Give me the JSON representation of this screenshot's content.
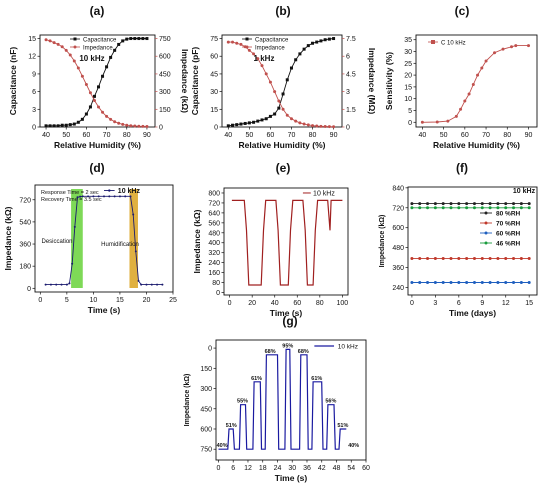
{
  "chart_data": [
    {
      "panel": "(a)",
      "type": "line",
      "xlabel": "Relative Humidity (%)",
      "ylabel": "Capacitance (nF)",
      "ylabel_right": "Impedance (kΩ)",
      "annotation": "10 kHz",
      "xlim": [
        37,
        94
      ],
      "ylim": [
        0,
        15.6
      ],
      "ylim_right": [
        0,
        780
      ],
      "x_ticks": [
        "40",
        "50",
        "60",
        "70",
        "80",
        "90"
      ],
      "y_ticks": [
        "0",
        "3",
        "6",
        "9",
        "12",
        "15"
      ],
      "y_ticks_right": [
        "0",
        "150",
        "300",
        "450",
        "600",
        "750"
      ],
      "x": [
        40,
        42,
        44,
        46,
        48,
        50,
        52,
        54,
        56,
        58,
        60,
        62,
        64,
        66,
        68,
        70,
        72,
        74,
        76,
        78,
        80,
        82,
        84,
        86,
        88,
        90
      ],
      "series": [
        {
          "name": "Capacitance",
          "axis": "left",
          "color": "#111111",
          "values": [
            0.2,
            0.2,
            0.2,
            0.2,
            0.3,
            0.3,
            0.4,
            0.5,
            0.8,
            1.3,
            2.2,
            3.4,
            5.2,
            6.8,
            8.6,
            10.2,
            11.8,
            13.0,
            14.0,
            14.6,
            14.9,
            15.0,
            15.0,
            15.0,
            15.0,
            15.0
          ]
        },
        {
          "name": "Impedance",
          "axis": "right",
          "color": "#c0504d",
          "values": [
            740,
            730,
            715,
            700,
            680,
            650,
            610,
            560,
            500,
            430,
            360,
            290,
            225,
            170,
            125,
            90,
            65,
            45,
            32,
            22,
            15,
            11,
            8,
            6,
            5,
            4
          ]
        }
      ]
    },
    {
      "panel": "(b)",
      "type": "line",
      "xlabel": "Relative Humidity (%)",
      "ylabel": "Capacitance (pF)",
      "ylabel_right": "Impedance (MΩ)",
      "annotation": "1 kHz",
      "xlim": [
        37,
        94
      ],
      "ylim": [
        0,
        78
      ],
      "ylim_right": [
        0,
        7.8
      ],
      "x_ticks": [
        "40",
        "50",
        "60",
        "70",
        "80",
        "90"
      ],
      "y_ticks": [
        "0",
        "15",
        "30",
        "45",
        "60",
        "75"
      ],
      "y_ticks_right": [
        "0",
        "1.5",
        "3",
        "4.5",
        "6",
        "7.5"
      ],
      "x": [
        40,
        42,
        44,
        46,
        48,
        50,
        52,
        54,
        56,
        58,
        60,
        62,
        64,
        66,
        68,
        70,
        72,
        74,
        76,
        78,
        80,
        82,
        84,
        86,
        88,
        90
      ],
      "series": [
        {
          "name": "Capacitance",
          "axis": "left",
          "color": "#111111",
          "values": [
            1,
            1.5,
            2,
            2.5,
            3,
            3.5,
            4,
            5,
            6,
            7,
            9,
            11,
            16,
            28,
            40,
            50,
            57,
            62,
            66,
            69,
            71,
            72,
            73,
            74,
            74.5,
            75
          ]
        },
        {
          "name": "Impedance",
          "axis": "right",
          "color": "#c0504d",
          "values": [
            7.2,
            7.2,
            7.1,
            7.0,
            6.8,
            6.5,
            6.2,
            5.8,
            5.2,
            4.5,
            3.8,
            3.0,
            2.2,
            1.5,
            1.0,
            0.7,
            0.5,
            0.35,
            0.25,
            0.18,
            0.12,
            0.08,
            0.05,
            0.04,
            0.03,
            0.02
          ]
        }
      ]
    },
    {
      "panel": "(c)",
      "type": "line",
      "xlabel": "Relative Humidity (%)",
      "ylabel": "Sensitivity (%)",
      "xlim": [
        37,
        94
      ],
      "ylim": [
        -2,
        37
      ],
      "x_ticks": [
        "40",
        "50",
        "60",
        "70",
        "80",
        "90"
      ],
      "y_ticks": [
        "0",
        "5",
        "10",
        "15",
        "20",
        "25",
        "30",
        "35"
      ],
      "x": [
        40,
        47,
        52,
        56,
        58,
        60,
        62,
        64,
        66,
        68,
        70,
        74,
        78,
        82,
        84,
        90
      ],
      "series": [
        {
          "name": "C 10 kHz",
          "color": "#c0504d",
          "values": [
            0,
            0.1,
            0.5,
            2.5,
            5.5,
            9,
            12,
            16,
            20,
            23,
            26,
            29.5,
            31,
            32,
            32.5,
            32.5
          ]
        }
      ]
    },
    {
      "panel": "(d)",
      "type": "line",
      "xlabel": "Time (s)",
      "ylabel": "Impedance (kΩ)",
      "xlim": [
        -1,
        25
      ],
      "ylim": [
        -30,
        840
      ],
      "x_ticks": [
        "0",
        "5",
        "10",
        "15",
        "20",
        "25"
      ],
      "y_ticks": [
        "0",
        "180",
        "360",
        "540",
        "720"
      ],
      "legend": "10 kHz",
      "annotations": [
        "Response Time = 2 sec",
        "Recovery Time = 3.5 sec",
        "Desiccation",
        "Humidification"
      ],
      "series": [
        {
          "name": "10 kHz",
          "color": "#1a1a6e",
          "x": [
            1,
            2,
            3,
            4,
            5,
            5.5,
            6,
            6.5,
            7,
            7.5,
            8,
            9,
            10,
            11,
            12,
            13,
            14,
            15,
            16,
            17,
            17.5,
            18,
            18.5,
            19,
            20,
            21,
            22,
            23
          ],
          "values": [
            30,
            30,
            30,
            30,
            30,
            40,
            200,
            500,
            740,
            745,
            748,
            748,
            748,
            748,
            748,
            748,
            748,
            748,
            748,
            748,
            600,
            300,
            60,
            30,
            30,
            30,
            30,
            30
          ]
        }
      ]
    },
    {
      "panel": "(e)",
      "type": "line",
      "xlabel": "Time (s)",
      "ylabel": "Impedance (kΩ)",
      "xlim": [
        -5,
        105
      ],
      "ylim": [
        -20,
        840
      ],
      "x_ticks": [
        "0",
        "20",
        "40",
        "60",
        "80",
        "100"
      ],
      "y_ticks": [
        "0",
        "80",
        "160",
        "240",
        "320",
        "400",
        "480",
        "560",
        "640",
        "720",
        "800"
      ],
      "legend": "10 kHz",
      "series": [
        {
          "name": "10 kHz",
          "color": "#a02020",
          "x": [
            2,
            13,
            15,
            17,
            28,
            30,
            32,
            41,
            43,
            45,
            52,
            54,
            56,
            65,
            67,
            69,
            74,
            76,
            78,
            87,
            89,
            90,
            100
          ],
          "values": [
            740,
            740,
            500,
            60,
            60,
            500,
            740,
            740,
            500,
            60,
            60,
            500,
            740,
            740,
            500,
            60,
            60,
            500,
            740,
            740,
            500,
            740,
            740
          ]
        }
      ]
    },
    {
      "panel": "(f)",
      "type": "line",
      "xlabel": "Time (days)",
      "ylabel": "Impedance (kΩ)",
      "annotation": "10 kHz",
      "xlim": [
        -0.5,
        16
      ],
      "ylim": [
        195,
        845
      ],
      "x_ticks": [
        "0",
        "3",
        "6",
        "9",
        "12",
        "15"
      ],
      "y_ticks": [
        "240",
        "360",
        "480",
        "600",
        "720",
        "840"
      ],
      "x": [
        0,
        1,
        2,
        3,
        4,
        5,
        6,
        7,
        8,
        9,
        10,
        11,
        12,
        13,
        14,
        15
      ],
      "series": [
        {
          "name": "80 %RH",
          "color": "#222222",
          "values": [
            745,
            745,
            745,
            745,
            745,
            745,
            745,
            745,
            745,
            745,
            745,
            745,
            745,
            745,
            745,
            745
          ]
        },
        {
          "name": "70 %RH",
          "color": "#c0392b",
          "values": [
            415,
            415,
            415,
            415,
            415,
            415,
            415,
            415,
            415,
            415,
            415,
            415,
            415,
            415,
            415,
            415
          ]
        },
        {
          "name": "60 %RH",
          "color": "#1f5fbf",
          "values": [
            270,
            270,
            270,
            270,
            270,
            270,
            270,
            270,
            270,
            270,
            270,
            270,
            270,
            270,
            270,
            270
          ]
        },
        {
          "name": "46 %RH",
          "color": "#1a9c3e",
          "values": [
            720,
            720,
            720,
            720,
            720,
            720,
            720,
            720,
            720,
            720,
            720,
            720,
            720,
            720,
            720,
            720
          ]
        }
      ]
    },
    {
      "panel": "(g)",
      "type": "line",
      "xlabel": "Time (s)",
      "ylabel": "Impedance (kΩ)",
      "y_inverted": true,
      "xlim": [
        -1,
        60
      ],
      "ylim": [
        -60,
        830
      ],
      "x_ticks": [
        "0",
        "6",
        "12",
        "18",
        "24",
        "30",
        "36",
        "42",
        "48",
        "54",
        "60"
      ],
      "y_ticks": [
        "0",
        "150",
        "300",
        "450",
        "600",
        "750"
      ],
      "legend": "10 kHz",
      "x": [
        0,
        3.8,
        4.3,
        6,
        6.5,
        8.5,
        9,
        11,
        11.5,
        14,
        14.5,
        17,
        17.5,
        19,
        19.5,
        24,
        24.5,
        27,
        27.5,
        29,
        29.5,
        33,
        33.5,
        36,
        36.5,
        38,
        38.5,
        42,
        42.5,
        44,
        44.5,
        47,
        47.5,
        49,
        49.5,
        52
      ],
      "series": [
        {
          "name": "10 kHz",
          "color": "#1a1aa0",
          "values": [
            750,
            750,
            600,
            600,
            750,
            750,
            420,
            420,
            750,
            750,
            250,
            250,
            750,
            750,
            50,
            50,
            750,
            750,
            10,
            10,
            750,
            750,
            50,
            50,
            750,
            750,
            250,
            250,
            750,
            750,
            420,
            420,
            750,
            750,
            600,
            600
          ]
        }
      ],
      "peak_labels": [
        {
          "text": "40%",
          "x": 1.5,
          "y": 750
        },
        {
          "text": "51%",
          "x": 5.2,
          "y": 600
        },
        {
          "text": "55%",
          "x": 9.8,
          "y": 420
        },
        {
          "text": "61%",
          "x": 15.5,
          "y": 250
        },
        {
          "text": "68%",
          "x": 21,
          "y": 50
        },
        {
          "text": "95%",
          "x": 28.2,
          "y": 10
        },
        {
          "text": "68%",
          "x": 34.5,
          "y": 50
        },
        {
          "text": "61%",
          "x": 40,
          "y": 250
        },
        {
          "text": "56%",
          "x": 45.7,
          "y": 420
        },
        {
          "text": "51%",
          "x": 50.6,
          "y": 600
        },
        {
          "text": "40%",
          "x": 55,
          "y": 750
        }
      ]
    }
  ]
}
